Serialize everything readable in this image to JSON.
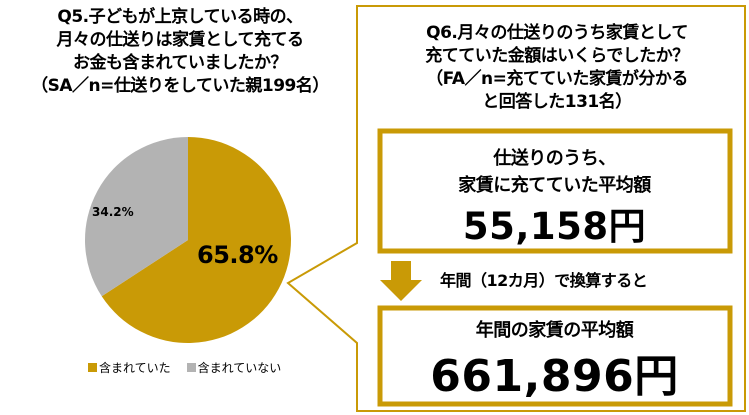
{
  "q5": {
    "title_lines": [
      "Q5.子どもが上京している時の、",
      "月々の仕送りは家賃として充てる",
      "お金も含まれていましたか？",
      "（SA／n=仕送りをしていた親199名）"
    ]
  },
  "q6": {
    "title_lines": [
      "Q6.月々の仕送りのうち家賃として",
      "充てていた金額はいくらでしたか？",
      "（FA／n=充てていた家賃が分かる",
      "と回答した131名）"
    ],
    "monthly_box": {
      "label_lines": [
        "仕送りのうち、",
        "家賃に充てていた平均額"
      ],
      "value": "55,158円"
    },
    "conversion_text": "年間（12カ月）で換算すると",
    "annual_box": {
      "label": "年間の家賃の平均額",
      "value": "661,896円"
    }
  },
  "colors": {
    "accent": "#C99A06",
    "gray": "#B3B3B3",
    "text": "#000000"
  },
  "chart_data": {
    "type": "pie",
    "title": "Q5.子どもが上京している時の、月々の仕送りは家賃として充てるお金も含まれていましたか？（SA／n=仕送りをしていた親199名）",
    "categories": [
      "含まれていた",
      "含まれていない"
    ],
    "values": [
      65.8,
      34.2
    ],
    "labels": [
      "65.8%",
      "34.2%"
    ],
    "colors": [
      "#C99A06",
      "#B3B3B3"
    ],
    "legend_position": "bottom",
    "legend": [
      "含まれていた",
      "含まれていない"
    ],
    "start_angle_deg": 0,
    "direction": "clockwise"
  }
}
